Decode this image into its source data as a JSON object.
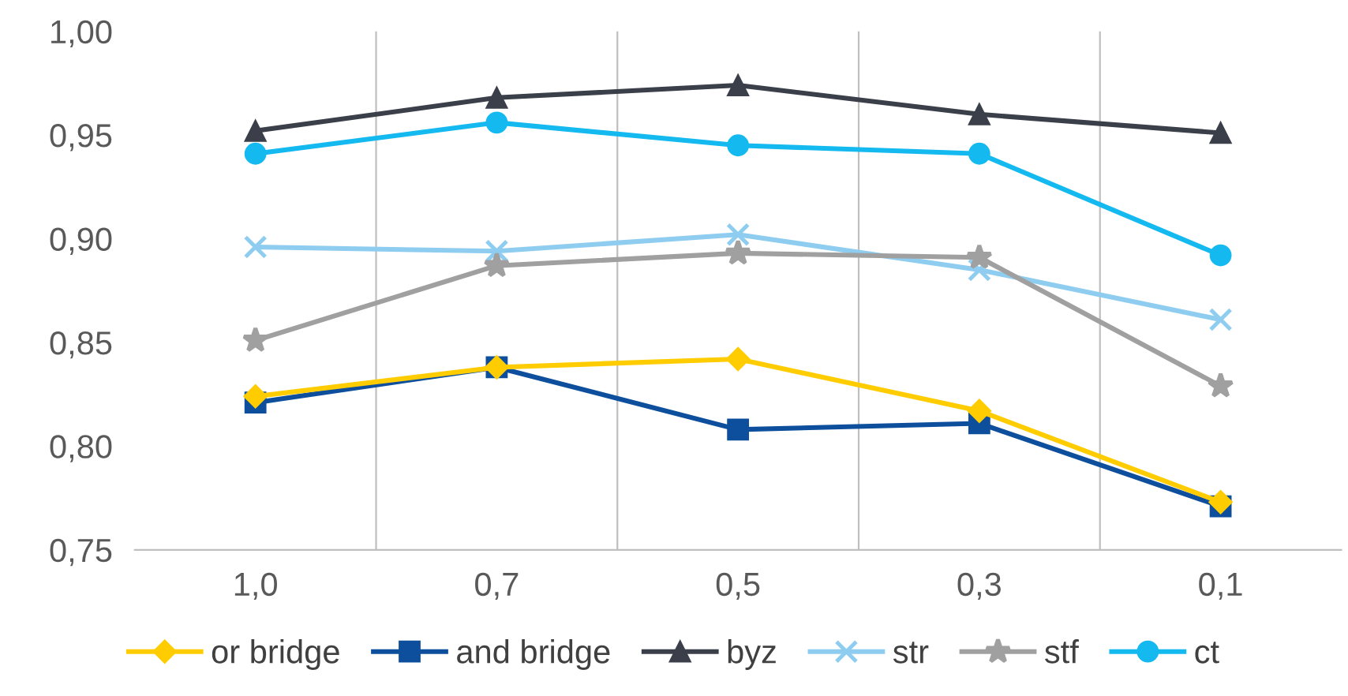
{
  "chart_data": {
    "type": "line",
    "categories": [
      "1,0",
      "0,7",
      "0,5",
      "0,3",
      "0,1"
    ],
    "series": [
      {
        "name": "or bridge",
        "color": "#ffcc00",
        "marker": "diamond",
        "values": [
          0.824,
          0.838,
          0.842,
          0.817,
          0.773
        ]
      },
      {
        "name": "and bridge",
        "color": "#0d4f9c",
        "marker": "square",
        "values": [
          0.821,
          0.838,
          0.808,
          0.811,
          0.771
        ]
      },
      {
        "name": "byz",
        "color": "#3a3f4a",
        "marker": "triangle",
        "values": [
          0.952,
          0.968,
          0.974,
          0.96,
          0.951
        ]
      },
      {
        "name": "str",
        "color": "#8fcdf0",
        "marker": "cross",
        "values": [
          0.896,
          0.894,
          0.902,
          0.885,
          0.861
        ]
      },
      {
        "name": "stf",
        "color": "#a0a0a0",
        "marker": "star",
        "values": [
          0.851,
          0.887,
          0.893,
          0.891,
          0.829
        ]
      },
      {
        "name": "ct",
        "color": "#14b9f0",
        "marker": "circle",
        "values": [
          0.941,
          0.956,
          0.945,
          0.941,
          0.892
        ]
      }
    ],
    "ylim": [
      0.75,
      1.0
    ],
    "yticks": [
      {
        "value": 0.75,
        "label": "0,75"
      },
      {
        "value": 0.8,
        "label": "0,80"
      },
      {
        "value": 0.85,
        "label": "0,85"
      },
      {
        "value": 0.9,
        "label": "0,90"
      },
      {
        "value": 0.95,
        "label": "0,95"
      },
      {
        "value": 1.0,
        "label": "1,00"
      }
    ],
    "grid": "x",
    "legend": "bottom",
    "line_style": "solid"
  }
}
